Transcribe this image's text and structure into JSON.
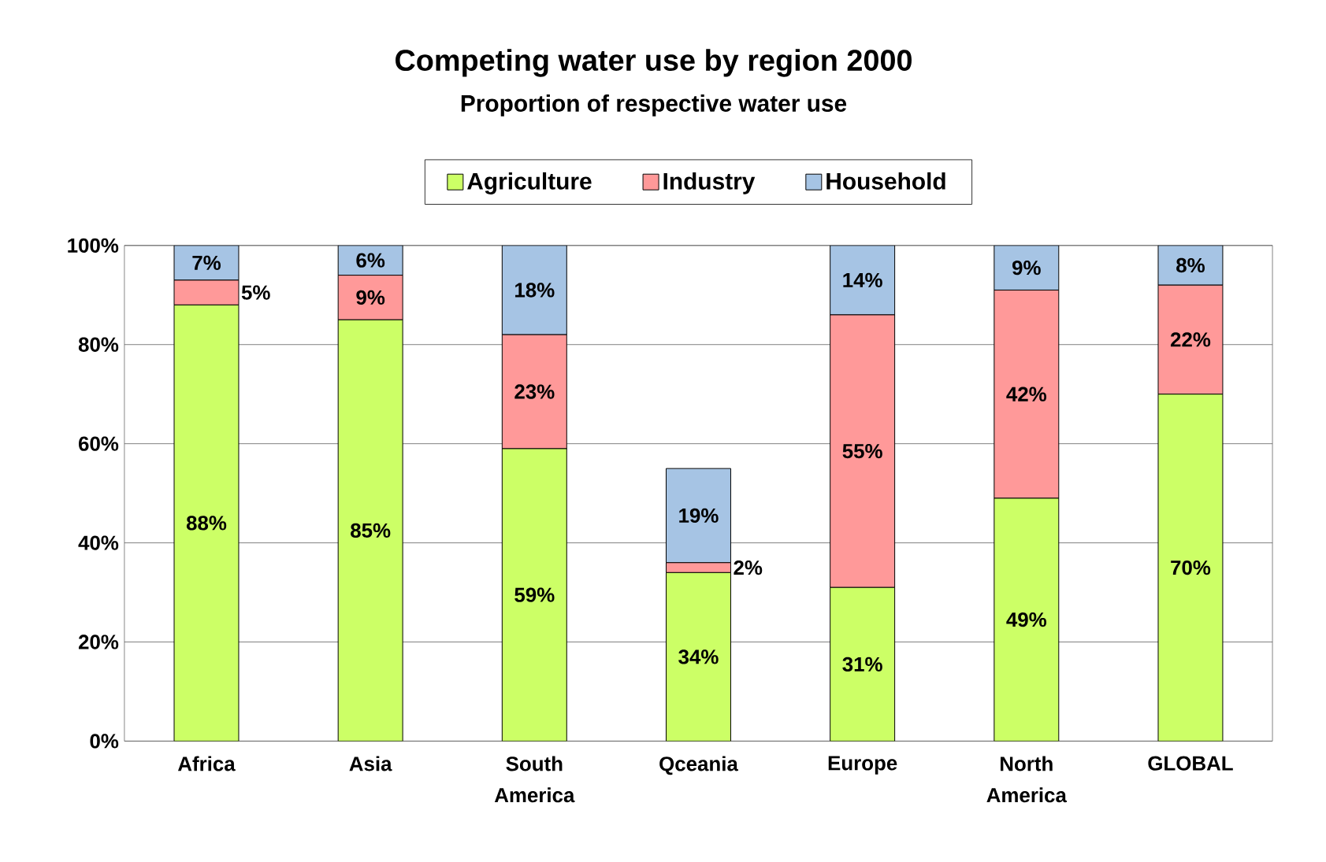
{
  "chart_data": {
    "type": "bar",
    "stacked": true,
    "title": "Competing water use by region 2000",
    "subtitle": "Proportion of respective water use",
    "categories": [
      "Africa",
      "Asia",
      "South America",
      "Qceania",
      "Europe",
      "North America",
      "GLOBAL"
    ],
    "series": [
      {
        "name": "Agriculture",
        "color": "#ccff66",
        "values": [
          88,
          85,
          59,
          34,
          31,
          49,
          70
        ],
        "value_labels": [
          "88%",
          "85%",
          "59%",
          "34%",
          "31%",
          "49%",
          "70%"
        ]
      },
      {
        "name": "Industry",
        "color": "#ff9999",
        "values": [
          5,
          9,
          23,
          2,
          55,
          42,
          22
        ],
        "value_labels": [
          "5%",
          "9%",
          "23%",
          "2%",
          "55%",
          "42%",
          "22%"
        ]
      },
      {
        "name": "Household",
        "color": "#a6c4e4",
        "values": [
          7,
          6,
          18,
          19,
          14,
          9,
          8
        ],
        "value_labels": [
          "7%",
          "6%",
          "18%",
          "19%",
          "14%",
          "9%",
          "8%"
        ]
      }
    ],
    "ylim": [
      0,
      100
    ],
    "yticks": [
      {
        "value": 0,
        "label": "0%"
      },
      {
        "value": 20,
        "label": "20%"
      },
      {
        "value": 40,
        "label": "40%"
      },
      {
        "value": 60,
        "label": "60%"
      },
      {
        "value": 80,
        "label": "80%"
      },
      {
        "value": 100,
        "label": "100%"
      }
    ],
    "grid": "y",
    "legend": "top"
  }
}
